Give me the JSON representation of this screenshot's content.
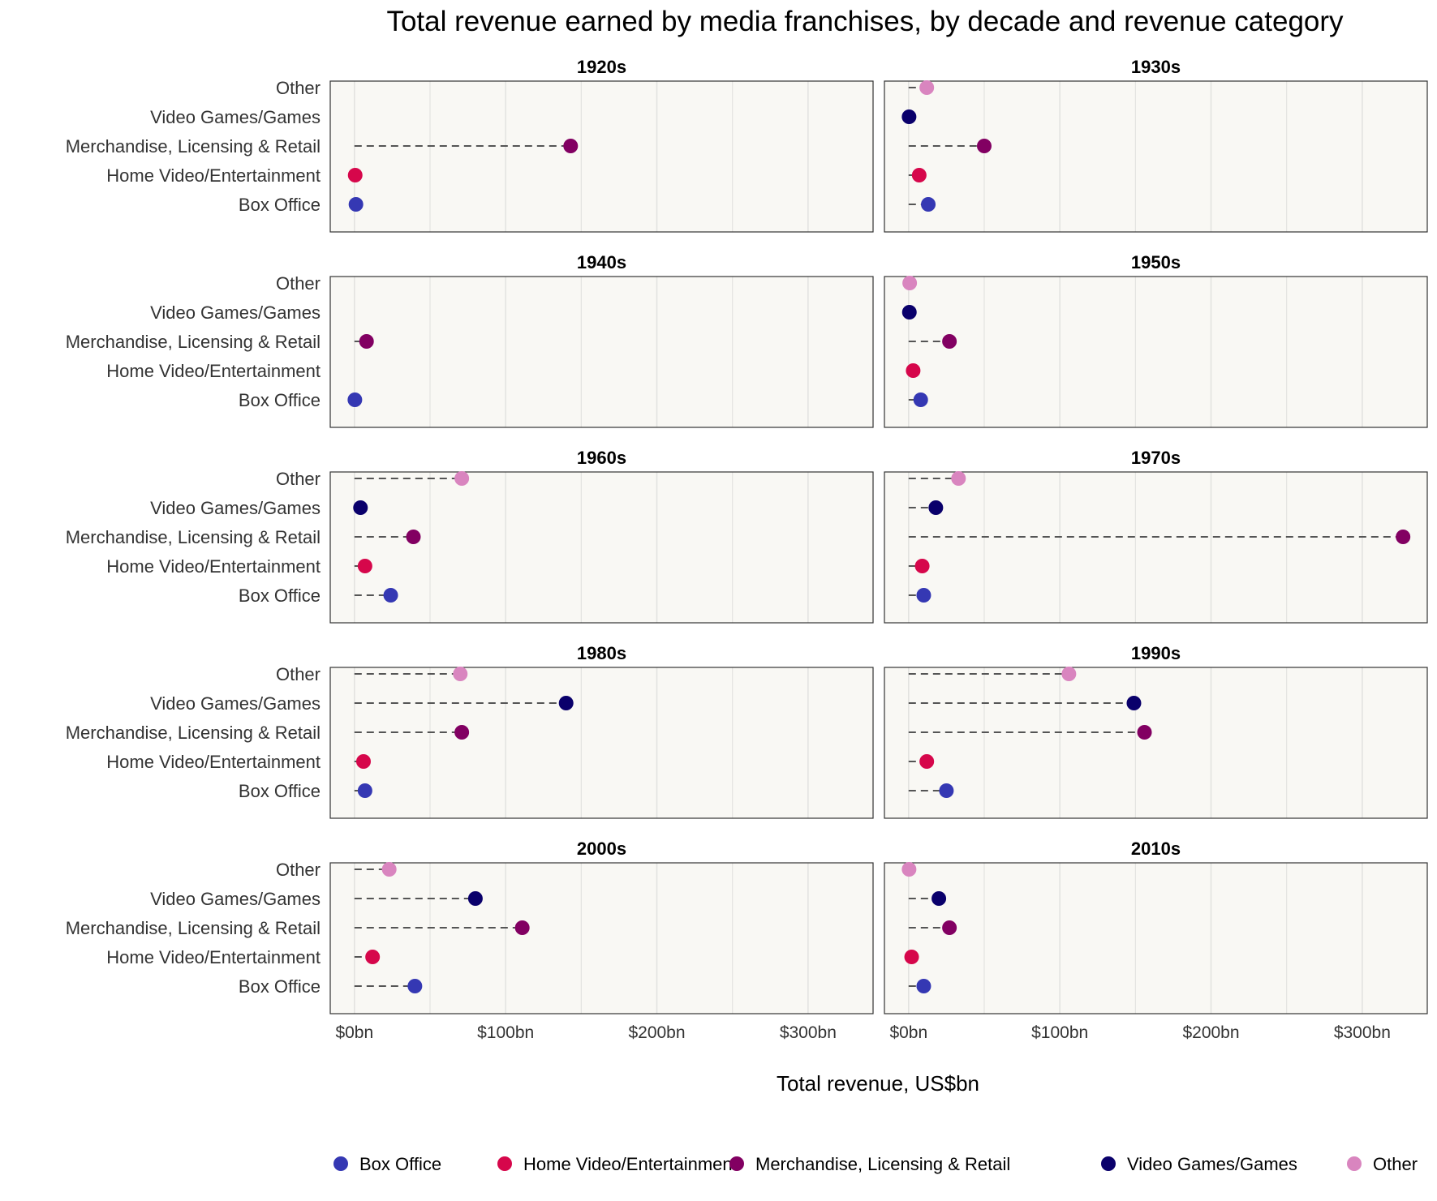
{
  "chart_data": {
    "type": "dot",
    "title": "Total revenue earned by media franchises, by decade and revenue category",
    "xlabel": "Total revenue, US$bn",
    "ylabel": "",
    "xlim": [
      -16,
      343
    ],
    "x_ticks": [
      0,
      100,
      200,
      300
    ],
    "x_tick_labels": [
      "$0bn",
      "$100bn",
      "$200bn",
      "$300bn"
    ],
    "grid": true,
    "categories": [
      "Box Office",
      "Home Video/Entertainment",
      "Merchandise, Licensing & Retail",
      "Video Games/Games",
      "Other"
    ],
    "colors": {
      "Box Office": "#3538b3",
      "Home Video/Entertainment": "#d6074b",
      "Merchandise, Licensing & Retail": "#820062",
      "Video Games/Games": "#0a006b",
      "Other": "#d985bf"
    },
    "legend": {
      "position": "bottom",
      "items": [
        "Box Office",
        "Home Video/Entertainment",
        "Merchandise, Licensing & Retail",
        "Video Games/Games",
        "Other"
      ]
    },
    "panels": [
      {
        "decade": "1920s",
        "values": {
          "Box Office": 1,
          "Home Video/Entertainment": 0.5,
          "Merchandise, Licensing & Retail": 143,
          "Video Games/Games": null,
          "Other": null
        }
      },
      {
        "decade": "1930s",
        "values": {
          "Box Office": 13,
          "Home Video/Entertainment": 7,
          "Merchandise, Licensing & Retail": 50,
          "Video Games/Games": 0.3,
          "Other": 12
        }
      },
      {
        "decade": "1940s",
        "values": {
          "Box Office": 0.3,
          "Home Video/Entertainment": null,
          "Merchandise, Licensing & Retail": 8,
          "Video Games/Games": null,
          "Other": null
        }
      },
      {
        "decade": "1950s",
        "values": {
          "Box Office": 8,
          "Home Video/Entertainment": 3,
          "Merchandise, Licensing & Retail": 27,
          "Video Games/Games": 0.5,
          "Other": 0.7
        }
      },
      {
        "decade": "1960s",
        "values": {
          "Box Office": 24,
          "Home Video/Entertainment": 7,
          "Merchandise, Licensing & Retail": 39,
          "Video Games/Games": 4,
          "Other": 71
        }
      },
      {
        "decade": "1970s",
        "values": {
          "Box Office": 10,
          "Home Video/Entertainment": 9,
          "Merchandise, Licensing & Retail": 327,
          "Video Games/Games": 18,
          "Other": 33
        }
      },
      {
        "decade": "1980s",
        "values": {
          "Box Office": 7,
          "Home Video/Entertainment": 6,
          "Merchandise, Licensing & Retail": 71,
          "Video Games/Games": 140,
          "Other": 70
        }
      },
      {
        "decade": "1990s",
        "values": {
          "Box Office": 25,
          "Home Video/Entertainment": 12,
          "Merchandise, Licensing & Retail": 156,
          "Video Games/Games": 149,
          "Other": 106
        }
      },
      {
        "decade": "2000s",
        "values": {
          "Box Office": 40,
          "Home Video/Entertainment": 12,
          "Merchandise, Licensing & Retail": 111,
          "Video Games/Games": 80,
          "Other": 23
        }
      },
      {
        "decade": "2010s",
        "values": {
          "Box Office": 10,
          "Home Video/Entertainment": 2,
          "Merchandise, Licensing & Retail": 27,
          "Video Games/Games": 20,
          "Other": 0.3
        }
      }
    ]
  }
}
